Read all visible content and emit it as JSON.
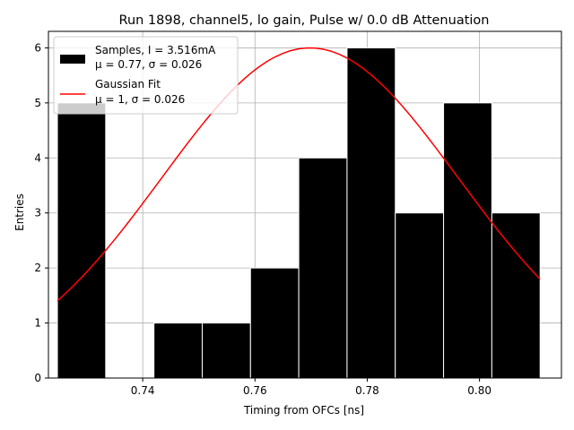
{
  "chart_data": {
    "type": "histogram+line",
    "title": "Run 1898, channel5, lo gain, Pulse w/ 0.0 dB Attenuation",
    "xlabel": "Timing from OFCs [ns]",
    "ylabel": "Entries",
    "xlim": [
      0.7232,
      0.8146
    ],
    "ylim": [
      0,
      6.3
    ],
    "xticks": [
      0.74,
      0.76,
      0.78,
      0.8
    ],
    "xtick_labels": [
      "0.74",
      "0.76",
      "0.78",
      "0.80"
    ],
    "yticks": [
      0,
      1,
      2,
      3,
      4,
      5,
      6
    ],
    "ytick_labels": [
      "0",
      "1",
      "2",
      "3",
      "4",
      "5",
      "6"
    ],
    "grid": true,
    "legend_location": "upper-left",
    "histogram": {
      "name": "Samples",
      "legend_line1": "Samples, I = 3.516mA",
      "legend_line2": "μ = 0.77, σ = 0.026",
      "color": "#000000",
      "bins": [
        {
          "x0": 0.7248,
          "x1": 0.7334,
          "count": 5
        },
        {
          "x0": 0.7334,
          "x1": 0.742,
          "count": 0
        },
        {
          "x0": 0.742,
          "x1": 0.7506,
          "count": 1
        },
        {
          "x0": 0.7506,
          "x1": 0.7592,
          "count": 1
        },
        {
          "x0": 0.7592,
          "x1": 0.7678,
          "count": 2
        },
        {
          "x0": 0.7678,
          "x1": 0.7764,
          "count": 4
        },
        {
          "x0": 0.7764,
          "x1": 0.785,
          "count": 6
        },
        {
          "x0": 0.785,
          "x1": 0.7936,
          "count": 3
        },
        {
          "x0": 0.7936,
          "x1": 0.8022,
          "count": 5
        },
        {
          "x0": 0.8022,
          "x1": 0.8108,
          "count": 3
        }
      ]
    },
    "fit": {
      "name": "Gaussian Fit",
      "legend_line1": "Gaussian Fit",
      "legend_line2": "μ = 1, σ = 0.026",
      "color": "#ff0000",
      "amplitude": 6.0,
      "mean": 0.7698,
      "sigma": 0.0264,
      "x_range": [
        0.7248,
        0.8108
      ]
    }
  }
}
